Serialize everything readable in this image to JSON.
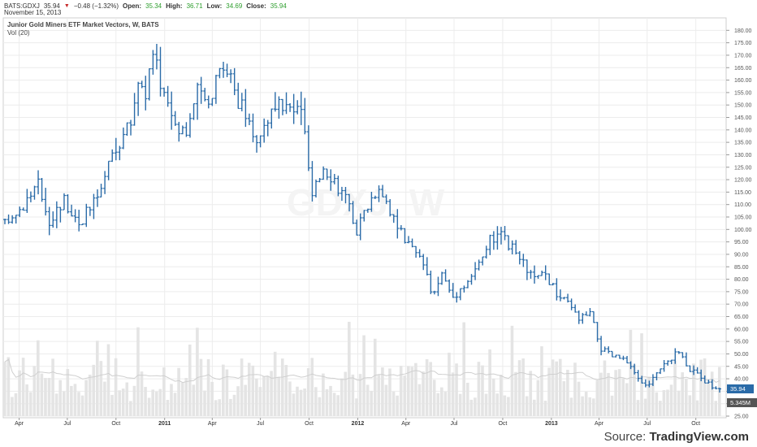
{
  "header": {
    "symbol": "BATS:GDXJ",
    "last": "35.94",
    "change_arrow": "▼",
    "change": "−0.48 (−1.32%)",
    "open_label": "Open:",
    "open": "35.34",
    "high_label": "High:",
    "high": "36.71",
    "low_label": "Low:",
    "low": "34.69",
    "close_label": "Close:",
    "close": "35.94",
    "date": "November 15, 2013"
  },
  "colors": {
    "bar": "#2a6ba8",
    "volume": "#e4e4e4",
    "volume_ma": "#cfcfcf",
    "grid": "#ececec",
    "price_tag": "#2a6ba8",
    "volume_tag": "#555555",
    "up_text": "#2e9e2e",
    "down_arrow": "#c62828"
  },
  "watermark": "GDXJ, W",
  "source": {
    "prefix": "Source:",
    "brand": "TradingView.com"
  },
  "chart_data": {
    "type": "ohlc",
    "title": "Junior Gold Miners ETF Market Vectors, W, BATS",
    "subtitle": "Vol (20)",
    "interval": "weekly",
    "x_start": "2010-03-05",
    "x_end": "2013-11-15",
    "ylim": [
      25,
      185
    ],
    "yticks": [
      25,
      30,
      35,
      40,
      45,
      50,
      55,
      60,
      65,
      70,
      75,
      80,
      85,
      90,
      95,
      100,
      105,
      110,
      115,
      120,
      125,
      130,
      135,
      140,
      145,
      150,
      155,
      160,
      165,
      170,
      175,
      180
    ],
    "ytick_labels": [
      "25.00",
      "30.00",
      "35.00",
      "40.00",
      "45.00",
      "50.00",
      "55.00",
      "60.00",
      "65.00",
      "70.00",
      "75.00",
      "80.00",
      "85.00",
      "90.00",
      "95.00",
      "100.00",
      "105.00",
      "110.00",
      "115.00",
      "120.00",
      "125.00",
      "130.00",
      "135.00",
      "140.00",
      "145.00",
      "150.00",
      "155.00",
      "160.00",
      "165.00",
      "170.00",
      "175.00",
      "180.00"
    ],
    "xticks": [
      {
        "label": "Apr",
        "date": "2010-04-01",
        "bold": false
      },
      {
        "label": "Jul",
        "date": "2010-07-01",
        "bold": false
      },
      {
        "label": "Oct",
        "date": "2010-10-01",
        "bold": false
      },
      {
        "label": "2011",
        "date": "2011-01-01",
        "bold": true
      },
      {
        "label": "Apr",
        "date": "2011-04-01",
        "bold": false
      },
      {
        "label": "Jul",
        "date": "2011-07-01",
        "bold": false
      },
      {
        "label": "Oct",
        "date": "2011-10-01",
        "bold": false
      },
      {
        "label": "2012",
        "date": "2012-01-01",
        "bold": true
      },
      {
        "label": "Apr",
        "date": "2012-04-01",
        "bold": false
      },
      {
        "label": "Jul",
        "date": "2012-07-01",
        "bold": false
      },
      {
        "label": "Oct",
        "date": "2012-10-01",
        "bold": false
      },
      {
        "label": "2013",
        "date": "2013-01-01",
        "bold": true
      },
      {
        "label": "Apr",
        "date": "2013-04-01",
        "bold": false
      },
      {
        "label": "Jul",
        "date": "2013-07-01",
        "bold": false
      },
      {
        "label": "Oct",
        "date": "2013-10-01",
        "bold": false
      }
    ],
    "close_path": [
      [
        "2010-03-05",
        102
      ],
      [
        "2010-04-09",
        110
      ],
      [
        "2010-05-07",
        118
      ],
      [
        "2010-05-28",
        104
      ],
      [
        "2010-06-25",
        112
      ],
      [
        "2010-07-23",
        103
      ],
      [
        "2010-08-13",
        108
      ],
      [
        "2010-09-03",
        116
      ],
      [
        "2010-09-24",
        130
      ],
      [
        "2010-10-29",
        143
      ],
      [
        "2010-11-12",
        160
      ],
      [
        "2010-11-26",
        155
      ],
      [
        "2010-12-10",
        170
      ],
      [
        "2010-12-31",
        155
      ],
      [
        "2011-01-21",
        143
      ],
      [
        "2011-02-11",
        140
      ],
      [
        "2011-03-04",
        155
      ],
      [
        "2011-03-25",
        150
      ],
      [
        "2011-04-15",
        168
      ],
      [
        "2011-05-06",
        162
      ],
      [
        "2011-05-20",
        152
      ],
      [
        "2011-06-10",
        142
      ],
      [
        "2011-06-24",
        136
      ],
      [
        "2011-07-15",
        145
      ],
      [
        "2011-08-12",
        150
      ],
      [
        "2011-09-02",
        147
      ],
      [
        "2011-09-16",
        150
      ],
      [
        "2011-10-07",
        112
      ],
      [
        "2011-10-28",
        126
      ],
      [
        "2011-11-18",
        120
      ],
      [
        "2011-12-09",
        112
      ],
      [
        "2011-12-30",
        100
      ],
      [
        "2012-01-20",
        110
      ],
      [
        "2012-02-10",
        118
      ],
      [
        "2012-02-24",
        112
      ],
      [
        "2012-03-16",
        100
      ],
      [
        "2012-04-13",
        92
      ],
      [
        "2012-05-04",
        86
      ],
      [
        "2012-05-18",
        74
      ],
      [
        "2012-06-08",
        82
      ],
      [
        "2012-06-29",
        73
      ],
      [
        "2012-07-20",
        78
      ],
      [
        "2012-08-10",
        83
      ],
      [
        "2012-09-07",
        96
      ],
      [
        "2012-09-28",
        97
      ],
      [
        "2012-10-19",
        92
      ],
      [
        "2012-11-09",
        86
      ],
      [
        "2012-11-30",
        80
      ],
      [
        "2012-12-21",
        82
      ],
      [
        "2013-01-11",
        74
      ],
      [
        "2013-02-01",
        70
      ],
      [
        "2013-02-22",
        64
      ],
      [
        "2013-03-15",
        66
      ],
      [
        "2013-04-05",
        52
      ],
      [
        "2013-04-26",
        49
      ],
      [
        "2013-05-17",
        48
      ],
      [
        "2013-06-07",
        42
      ],
      [
        "2013-06-28",
        37
      ],
      [
        "2013-07-19",
        42
      ],
      [
        "2013-08-09",
        47
      ],
      [
        "2013-08-30",
        51
      ],
      [
        "2013-09-20",
        44
      ],
      [
        "2013-10-11",
        40
      ],
      [
        "2013-11-01",
        37
      ],
      [
        "2013-11-15",
        35.94
      ]
    ],
    "volume_axis_label": "5.345M",
    "price_axis_label": "35.94",
    "last_close": 35.94
  }
}
